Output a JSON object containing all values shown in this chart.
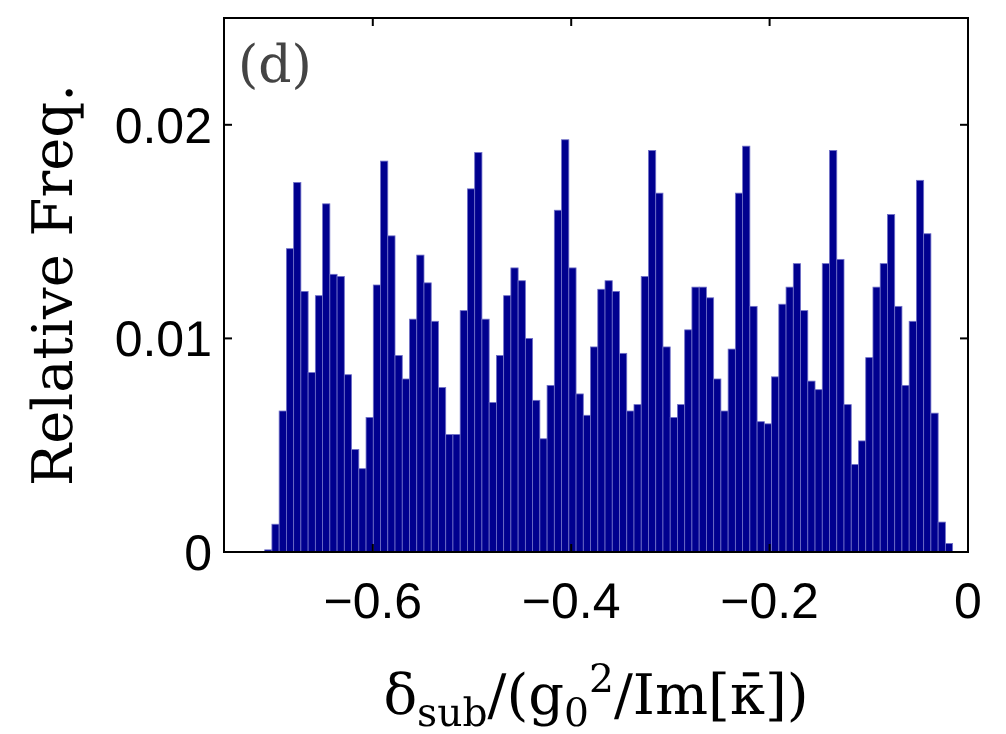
{
  "chart_data": {
    "type": "histogram",
    "xlabel": "δ$_{sub}$/(g$_{0}$$^{2}$/Im[κ̄])",
    "ylabel": "Relative Freq.",
    "annotations": [
      "(d)"
    ],
    "color": "#00008f",
    "bins": [
      -0.709,
      -0.7017,
      -0.6944,
      -0.6871,
      -0.6798,
      -0.6725,
      -0.6652,
      -0.6579,
      -0.6506,
      -0.6433,
      -0.636,
      -0.6287,
      -0.6214,
      -0.6141,
      -0.6068,
      -0.5995,
      -0.5922,
      -0.5849,
      -0.5776,
      -0.5703,
      -0.563,
      -0.5557,
      -0.5484,
      -0.5411,
      -0.5338,
      -0.5265,
      -0.5192,
      -0.5119,
      -0.5046,
      -0.4973,
      -0.49,
      -0.4827,
      -0.4754,
      -0.4681,
      -0.4608,
      -0.4535,
      -0.4462,
      -0.4389,
      -0.4316,
      -0.4243,
      -0.417,
      -0.4097,
      -0.4024,
      -0.3951,
      -0.3878,
      -0.3805,
      -0.3732,
      -0.3659,
      -0.3586,
      -0.3513,
      -0.344,
      -0.3367,
      -0.3294,
      -0.3221,
      -0.3148,
      -0.3075,
      -0.3002,
      -0.2929,
      -0.2856,
      -0.2783,
      -0.271,
      -0.2637,
      -0.2564,
      -0.2491,
      -0.2418,
      -0.2345,
      -0.2272,
      -0.2199,
      -0.2126,
      -0.2053,
      -0.198,
      -0.1907,
      -0.1834,
      -0.1761,
      -0.1688,
      -0.1615,
      -0.1542,
      -0.1469,
      -0.1396,
      -0.1323,
      -0.125,
      -0.1177,
      -0.1104,
      -0.1031,
      -0.0958,
      -0.0885,
      -0.0812,
      -0.0739,
      -0.0666,
      -0.0593,
      -0.052,
      -0.0447,
      -0.0374,
      -0.0301,
      -0.0228,
      -0.0155
    ],
    "values": [
      0.0001,
      0.0013,
      0.0066,
      0.0142,
      0.0173,
      0.0122,
      0.0084,
      0.012,
      0.0163,
      0.013,
      0.0129,
      0.0083,
      0.0048,
      0.0039,
      0.0063,
      0.0125,
      0.0183,
      0.0148,
      0.0092,
      0.0081,
      0.0109,
      0.0139,
      0.0126,
      0.0108,
      0.0077,
      0.0055,
      0.0055,
      0.0113,
      0.017,
      0.0187,
      0.0109,
      0.007,
      0.0092,
      0.012,
      0.0133,
      0.0127,
      0.01,
      0.0071,
      0.0053,
      0.0078,
      0.016,
      0.0193,
      0.0133,
      0.0074,
      0.0064,
      0.0096,
      0.0123,
      0.0127,
      0.0122,
      0.0093,
      0.0066,
      0.0069,
      0.0129,
      0.0188,
      0.0168,
      0.0096,
      0.0063,
      0.0069,
      0.0104,
      0.0124,
      0.0124,
      0.0119,
      0.0081,
      0.0066,
      0.0095,
      0.0168,
      0.019,
      0.0115,
      0.0061,
      0.006,
      0.0082,
      0.0116,
      0.0124,
      0.0135,
      0.0113,
      0.008,
      0.0076,
      0.0135,
      0.0188,
      0.0137,
      0.0069,
      0.0041,
      0.0052,
      0.0091,
      0.0124,
      0.0135,
      0.0158,
      0.0115,
      0.0078,
      0.0108,
      0.0174,
      0.0149,
      0.0065,
      0.0014,
      0.0004
    ],
    "xlim": [
      -0.75,
      0
    ],
    "ylim": [
      0,
      0.025
    ],
    "xticks": [
      {
        "value": -0.6,
        "label": "−0.6"
      },
      {
        "value": -0.4,
        "label": "−0.4"
      },
      {
        "value": -0.2,
        "label": "−0.2"
      },
      0
    ],
    "yticks": [
      0,
      0.01,
      0.02
    ],
    "grid": false
  }
}
